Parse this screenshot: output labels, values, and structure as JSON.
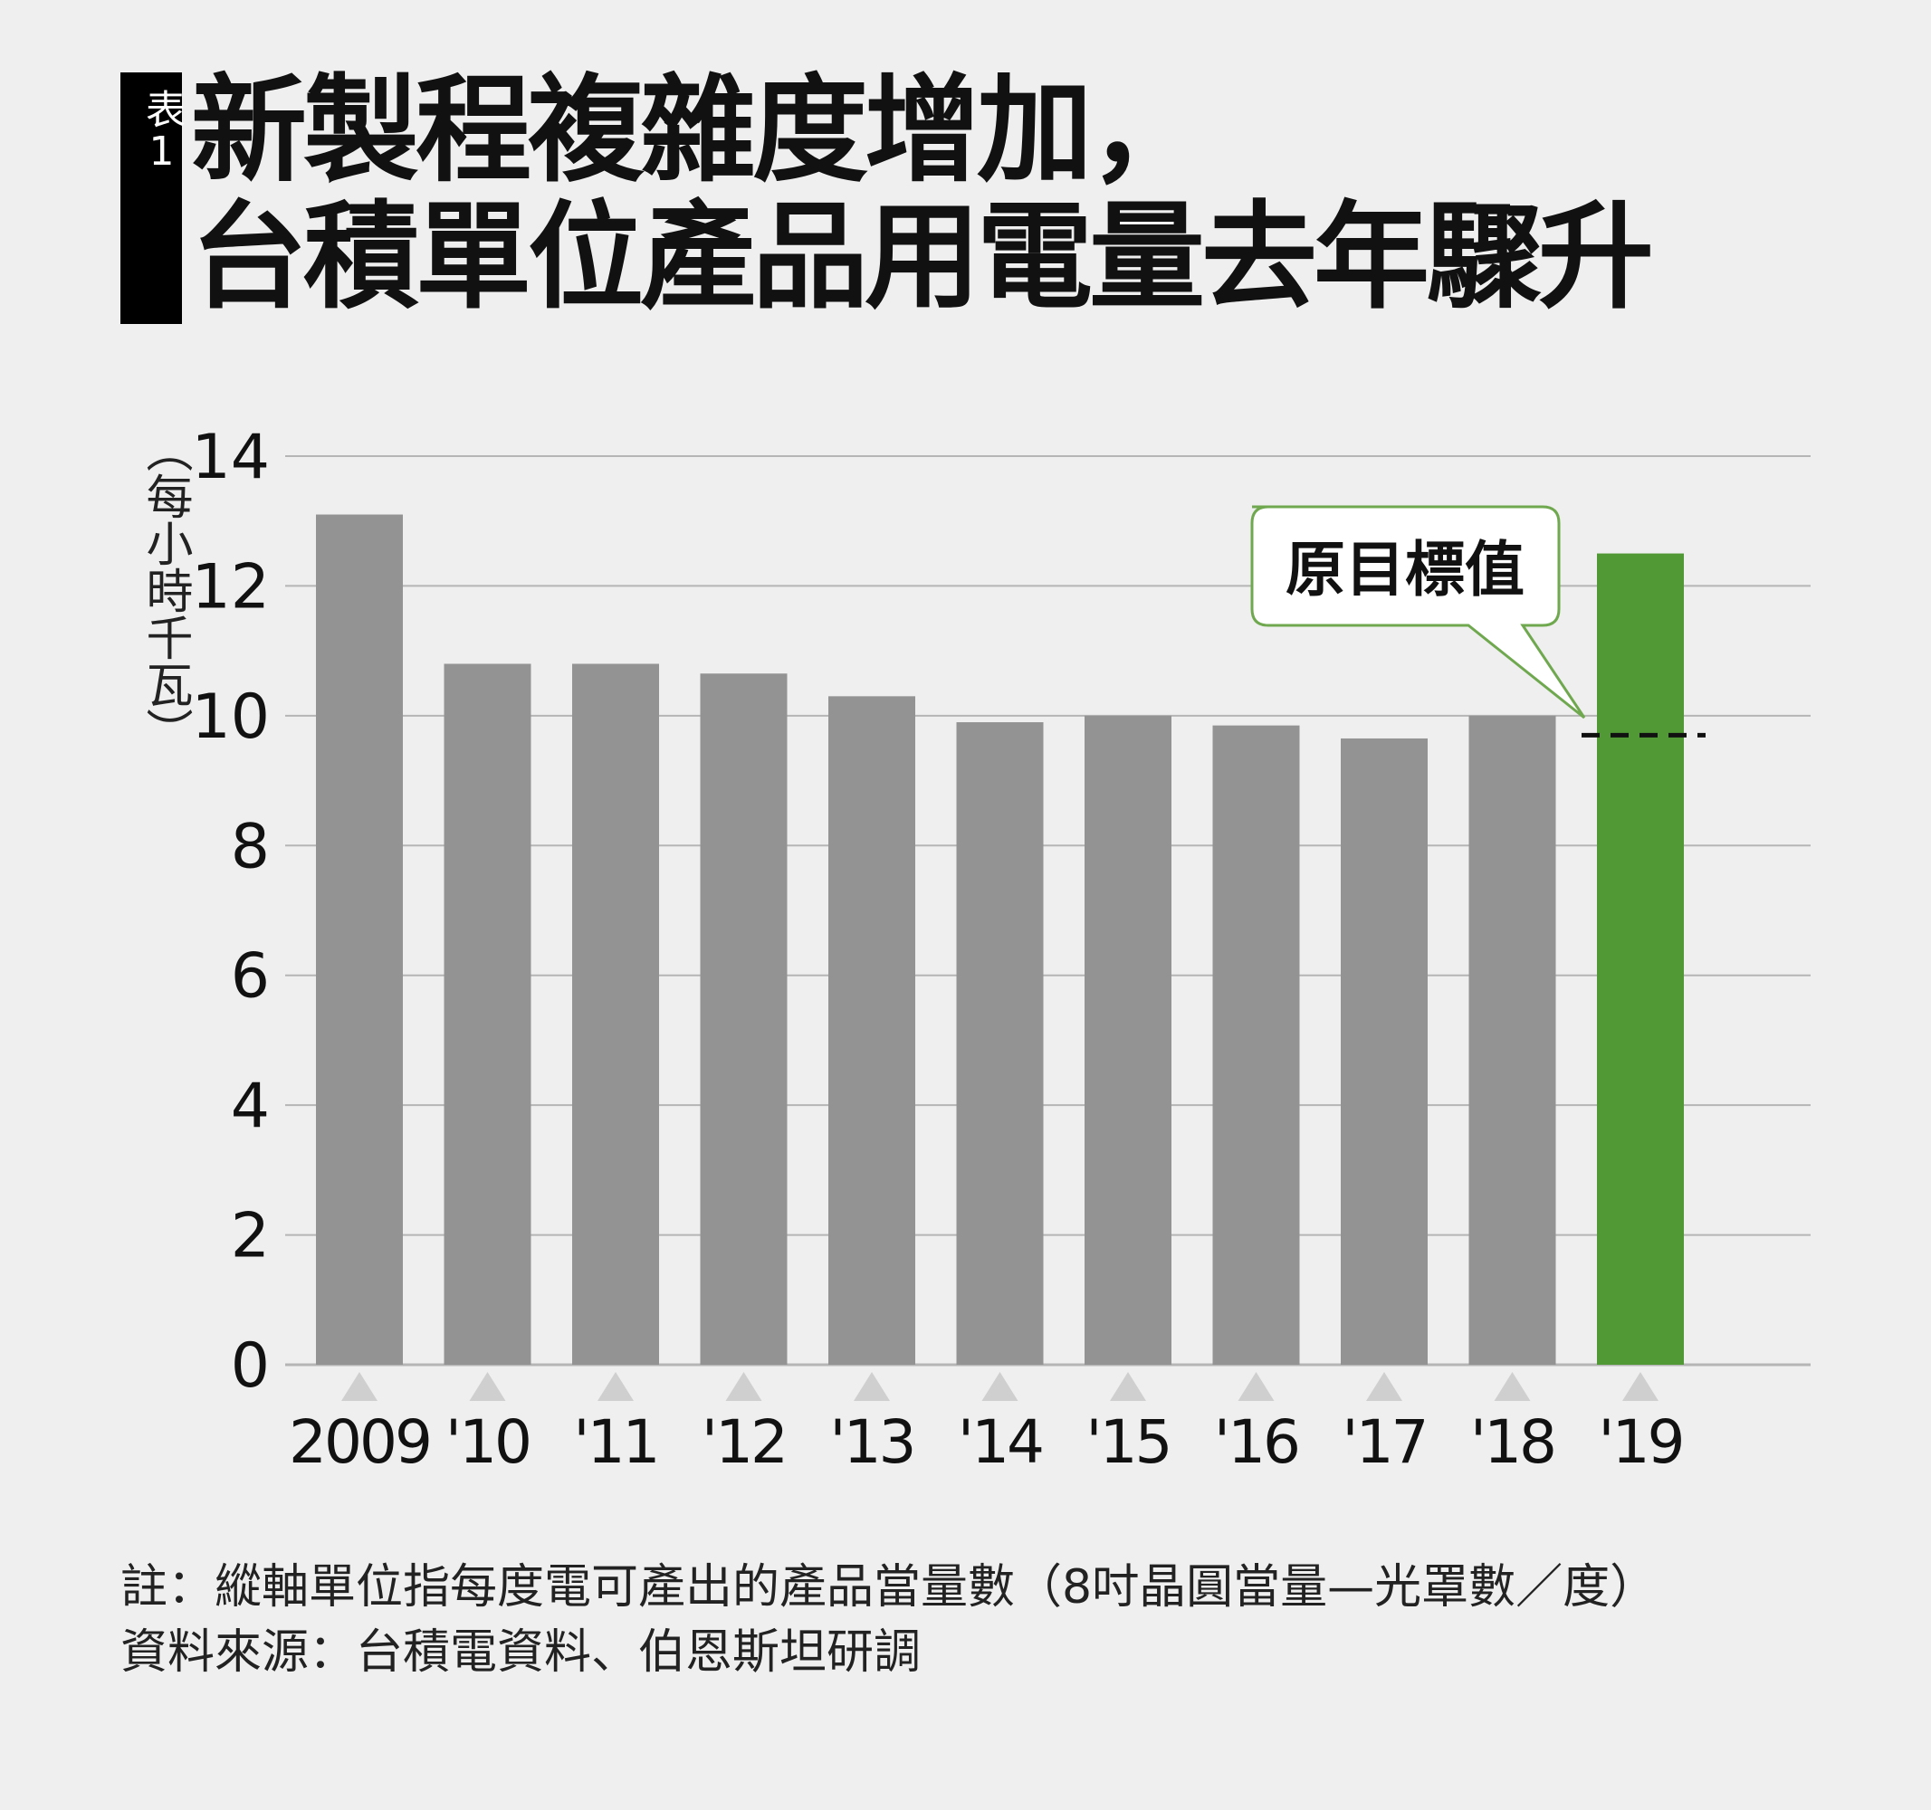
{
  "title": {
    "badge": "表1",
    "line1": "新製程複雜度增加，",
    "line2": "台積單位產品用電量去年驟升"
  },
  "chart_data": {
    "type": "bar",
    "title": "新製程複雜度增加，台積單位產品用電量去年驟升",
    "ylabel": "（每小時千瓦）",
    "xlabel": "",
    "categories": [
      "2009",
      "'10",
      "'11",
      "'12",
      "'13",
      "'14",
      "'15",
      "'16",
      "'17",
      "'18",
      "'19"
    ],
    "values": [
      13.1,
      10.8,
      10.8,
      10.65,
      10.3,
      9.9,
      10.0,
      9.85,
      9.65,
      10.0,
      12.5
    ],
    "ylim": [
      0,
      14
    ],
    "yticks": [
      "0",
      "2",
      "4",
      "6",
      "8",
      "10",
      "12",
      "14"
    ],
    "grid": true,
    "colors": {
      "default": "#939393",
      "highlight": "#509934",
      "grid": "#b5b5b5",
      "marker": "#cfcfcf"
    },
    "highlight_category": "'19",
    "target": {
      "category": "'19",
      "value": 9.7,
      "label": "原目標值"
    }
  },
  "footnote": {
    "note": "註：縱軸單位指每度電可產出的產品當量數（8吋晶圓當量—光罩數／度）",
    "source": "資料來源：台積電資料、伯恩斯坦研調"
  }
}
